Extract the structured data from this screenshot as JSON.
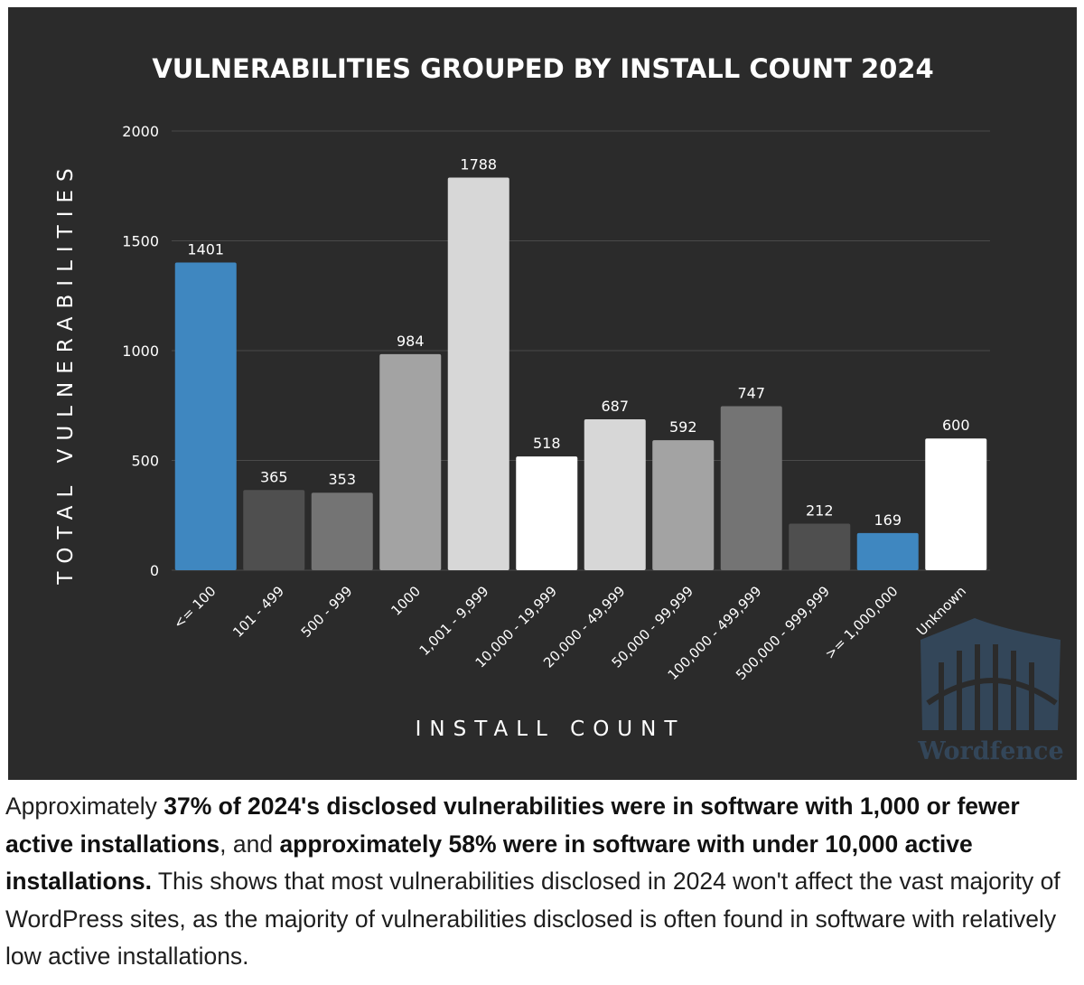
{
  "chart_data": {
    "type": "bar",
    "title": "VULNERABILITIES GROUPED BY INSTALL COUNT 2024",
    "xlabel": "INSTALL COUNT",
    "ylabel": "TOTAL VULNERABILITIES",
    "ylim": [
      0,
      2000
    ],
    "yticks": [
      0,
      500,
      1000,
      1500,
      2000
    ],
    "grid": true,
    "categories": [
      "<= 100",
      "101 - 499",
      "500 - 999",
      "1000",
      "1,001 - 9,999",
      "10,000 - 19,999",
      "20,000 - 49,999",
      "50,000 - 99,999",
      "100,000 - 499,999",
      "500,000 - 999,999",
      ">= 1,000,000",
      "Unknown"
    ],
    "values": [
      1401,
      365,
      353,
      984,
      1788,
      518,
      687,
      592,
      747,
      212,
      169,
      600
    ],
    "bar_colors": [
      "#3f87c0",
      "#4f4f4f",
      "#747474",
      "#a3a3a3",
      "#d7d7d7",
      "#ffffff",
      "#d7d7d7",
      "#a3a3a3",
      "#747474",
      "#4f4f4f",
      "#3f87c0",
      "#ffffff"
    ]
  },
  "watermark": {
    "text": "Wordfence"
  },
  "caption": {
    "p1": "Approximately ",
    "b1": "37% of 2024's disclosed vulnerabilities were in software with 1,000 or fewer active installations",
    "p2": ", and ",
    "b2": "approximately 58% were in software with under 10,000 active installations.",
    "p3": " This shows that most vulnerabilities disclosed in 2024 won't affect the vast majority of WordPress sites, as the majority of vulnerabilities disclosed is often found in software with relatively low active installations."
  }
}
